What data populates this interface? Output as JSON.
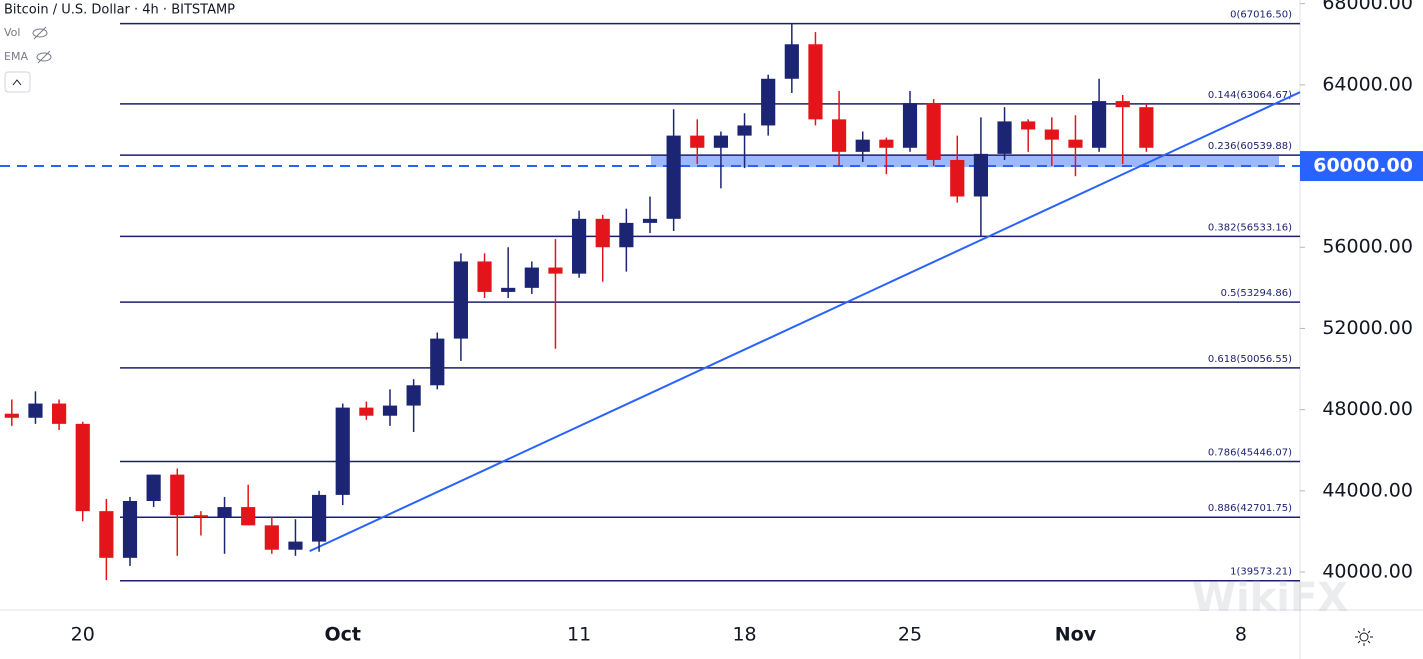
{
  "chart_data": {
    "type": "candlestick",
    "title": "Bitcoin / U.S. Dollar · 4h · BITSTAMP",
    "indicators": [
      "Vol",
      "EMA"
    ],
    "watermark": "WikiFX",
    "categories": [
      null,
      null,
      null,
      "20",
      null,
      null,
      null,
      null,
      null,
      null,
      null,
      null,
      null,
      null,
      "Oct",
      null,
      null,
      null,
      null,
      null,
      null,
      null,
      null,
      null,
      "11",
      null,
      null,
      null,
      null,
      null,
      null,
      "18",
      null,
      null,
      null,
      null,
      null,
      null,
      "25",
      null,
      null,
      null,
      null,
      null,
      null,
      "Nov",
      null,
      null,
      null,
      null,
      null,
      null,
      "8",
      null,
      null
    ],
    "open": [
      47800,
      47600,
      48300,
      47300,
      43000,
      40700,
      43500,
      44800,
      42800,
      42700,
      43200,
      42300,
      41100,
      41500,
      43800,
      48100,
      47700,
      48200,
      49200,
      51500,
      55300,
      53800,
      54000,
      55000,
      54700,
      57400,
      56000,
      57200,
      57400,
      61500,
      60900,
      61500,
      62000,
      64300,
      66000,
      62300,
      60700,
      61300,
      60900,
      63100,
      60300,
      58500,
      60600,
      62200,
      61800,
      61300,
      60900,
      63200,
      62900,
      null,
      null,
      null,
      null,
      null,
      null
    ],
    "high": [
      48500,
      48900,
      48500,
      47400,
      43600,
      43700,
      44800,
      45100,
      43000,
      43700,
      44300,
      42700,
      42600,
      44000,
      48300,
      48400,
      49000,
      49500,
      51800,
      55700,
      55700,
      56000,
      55300,
      56400,
      57800,
      57600,
      57900,
      58500,
      62800,
      62300,
      61700,
      62600,
      64500,
      67000,
      66600,
      63700,
      61700,
      61400,
      63700,
      63300,
      61500,
      62400,
      62900,
      62300,
      62400,
      62500,
      64300,
      63500,
      63100,
      null,
      null,
      null,
      null,
      null,
      null
    ],
    "low": [
      47200,
      47300,
      47000,
      42500,
      39600,
      40300,
      43200,
      40800,
      41800,
      40900,
      42300,
      40900,
      40800,
      41000,
      43300,
      47500,
      47200,
      46900,
      49000,
      50400,
      53500,
      53500,
      53700,
      51000,
      54500,
      54300,
      54800,
      56700,
      56800,
      60100,
      58900,
      59900,
      61500,
      63600,
      62000,
      60000,
      60200,
      59600,
      60700,
      60000,
      58200,
      56500,
      60300,
      60700,
      60000,
      59500,
      60700,
      60100,
      60700,
      null,
      null,
      null,
      null,
      null,
      null
    ],
    "close": [
      47600,
      48300,
      47300,
      43000,
      40700,
      43500,
      44800,
      42800,
      42700,
      43200,
      42300,
      41100,
      41500,
      43800,
      48100,
      47700,
      48200,
      49200,
      51500,
      55300,
      53800,
      54000,
      55000,
      54700,
      57400,
      56000,
      57200,
      57400,
      61500,
      60900,
      61500,
      62000,
      64300,
      66000,
      62300,
      60700,
      61300,
      60900,
      63100,
      60300,
      58500,
      60600,
      62200,
      61800,
      61300,
      60900,
      63200,
      62900,
      60900,
      null,
      null,
      null,
      null,
      null,
      null
    ],
    "up_color": "#1c2573",
    "down_color": "#e3151b",
    "ylim": [
      38130,
      68180
    ],
    "yticks": [
      {
        "value": 40000,
        "label": "40000.00"
      },
      {
        "value": 44000,
        "label": "44000.00"
      },
      {
        "value": 48000,
        "label": "48000.00"
      },
      {
        "value": 52000,
        "label": "52000.00"
      },
      {
        "value": 56000,
        "label": "56000.00"
      },
      {
        "value": 60000,
        "label": "60000.00"
      },
      {
        "value": 64000,
        "label": "64000.00"
      },
      {
        "value": 68000,
        "label": "68000.00"
      }
    ],
    "fib_levels": [
      {
        "value": 67016.5,
        "label": "0(67016.50)"
      },
      {
        "value": 63064.67,
        "label": "0.144(63064.67)"
      },
      {
        "value": 60539.88,
        "label": "0.236(60539.88)"
      },
      {
        "value": 56533.16,
        "label": "0.382(56533.16)"
      },
      {
        "value": 53294.86,
        "label": "0.5(53294.86)"
      },
      {
        "value": 50056.55,
        "label": "0.618(50056.55)"
      },
      {
        "value": 45446.07,
        "label": "0.786(45446.07)"
      },
      {
        "value": 42701.75,
        "label": "0.886(42701.75)"
      },
      {
        "value": 39573.21,
        "label": "1(39573.21)"
      }
    ],
    "price_line": {
      "value": 60000,
      "label": "60000.00",
      "color": "#2962ff"
    },
    "support_zone": [
      59950,
      60560
    ],
    "trendline": [
      41030,
      63640
    ]
  }
}
